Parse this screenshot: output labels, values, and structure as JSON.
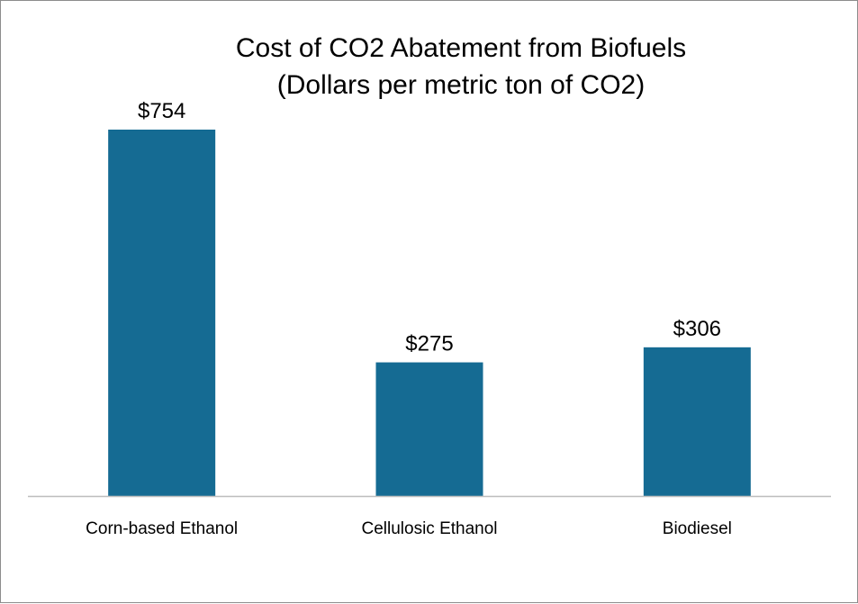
{
  "chart_data": {
    "type": "bar",
    "title_lines": [
      "Cost of CO2 Abatement from Biofuels",
      "(Dollars per metric ton of CO2)"
    ],
    "categories": [
      "Corn-based Ethanol",
      "Cellulosic Ethanol",
      "Biodiesel"
    ],
    "values": [
      754,
      275,
      306
    ],
    "data_labels": [
      "$754",
      "$275",
      "$306"
    ],
    "ylim": [
      0,
      754
    ],
    "grid": false,
    "legend": "none",
    "bar_color": "#156b93",
    "axis_color": "#bdbdbd"
  }
}
